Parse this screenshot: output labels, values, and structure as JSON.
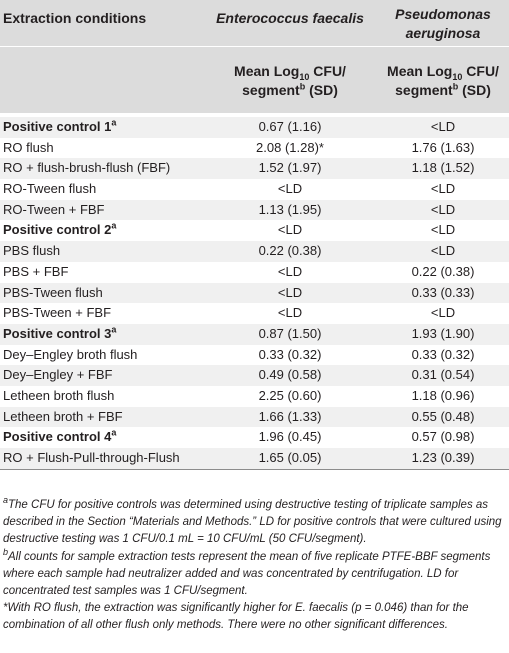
{
  "header": {
    "col_conditions": "Extraction conditions",
    "col_ef": "Enterococcus faecalis",
    "col_pa_line1": "Pseudomonas",
    "col_pa_line2": "aeruginosa",
    "mean_line1_pre": "Mean Log",
    "mean_sub": "10",
    "mean_line1_post": " CFU/",
    "mean_line2_pre": "segment",
    "mean_sup": "b",
    "mean_line2_post": " (SD)"
  },
  "rows": [
    {
      "cond": "Positive control 1",
      "sup": "a",
      "bold": true,
      "ef": "0.67 (1.16)",
      "pa": "<LD"
    },
    {
      "cond": "RO flush",
      "bold": false,
      "ef": "2.08 (1.28)*",
      "pa": "1.76 (1.63)"
    },
    {
      "cond": "RO + flush-brush-flush (FBF)",
      "bold": false,
      "ef": "1.52 (1.97)",
      "pa": "1.18 (1.52)"
    },
    {
      "cond": "RO-Tween flush",
      "bold": false,
      "ef": "<LD",
      "pa": "<LD"
    },
    {
      "cond": "RO-Tween + FBF",
      "bold": false,
      "ef": "1.13 (1.95)",
      "pa": "<LD"
    },
    {
      "cond": "Positive control 2",
      "sup": "a",
      "bold": true,
      "ef": "<LD",
      "pa": "<LD"
    },
    {
      "cond": "PBS flush",
      "bold": false,
      "ef": "0.22 (0.38)",
      "pa": "<LD"
    },
    {
      "cond": "PBS + FBF",
      "bold": false,
      "ef": "<LD",
      "pa": "0.22 (0.38)"
    },
    {
      "cond": "PBS-Tween flush",
      "bold": false,
      "ef": "<LD",
      "pa": "0.33 (0.33)"
    },
    {
      "cond": "PBS-Tween + FBF",
      "bold": false,
      "ef": "<LD",
      "pa": "<LD"
    },
    {
      "cond": "Positive control 3",
      "sup": "a",
      "bold": true,
      "ef": "0.87 (1.50)",
      "pa": "1.93 (1.90)"
    },
    {
      "cond": "Dey–Engley broth flush",
      "bold": false,
      "ef": "0.33 (0.32)",
      "pa": "0.33 (0.32)"
    },
    {
      "cond": "Dey–Engley + FBF",
      "bold": false,
      "ef": "0.49 (0.58)",
      "pa": "0.31 (0.54)"
    },
    {
      "cond": "Letheen broth flush",
      "bold": false,
      "ef": "2.25 (0.60)",
      "pa": "1.18 (0.96)"
    },
    {
      "cond": "Letheen broth + FBF",
      "bold": false,
      "ef": "1.66 (1.33)",
      "pa": "0.55 (0.48)"
    },
    {
      "cond": "Positive control 4",
      "sup": "a",
      "bold": true,
      "ef": "1.96 (0.45)",
      "pa": "0.57 (0.98)"
    },
    {
      "cond": "RO + Flush-Pull-through-Flush",
      "bold": false,
      "ef": "1.65 (0.05)",
      "pa": "1.23 (0.39)"
    }
  ],
  "footnotes": {
    "a_marker": "a",
    "a_text": "The CFU for positive controls was determined using destructive testing of triplicate samples as described in the Section “Materials and Methods.” LD for positive controls that were cultured using destructive testing was 1 CFU/0.1 mL = 10 CFU/mL (50 CFU/segment).",
    "b_marker": "b",
    "b_text": "All counts for sample extraction tests represent the mean of five replicate PTFE-BBF segments where each sample had neutralizer added and was concentrated by centrifugation. LD for concentrated test samples was 1 CFU/segment.",
    "star_text": "*With RO flush, the extraction was significantly higher for E. faecalis (p = 0.046) than for the combination of all other flush only methods. There were no other significant differences."
  }
}
